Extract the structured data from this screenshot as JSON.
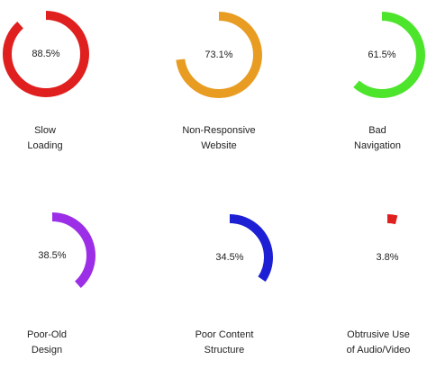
{
  "chart_data": {
    "type": "radial-progress",
    "categories": [
      "Slow\nLoading",
      "Non-Responsive\nWebsite",
      "Bad\nNavigation",
      "Poor-Old\nDesign",
      "Poor Content\nStructure",
      "Obtrusive Use\nof Audio/Video"
    ],
    "values": [
      88.5,
      73.1,
      61.5,
      38.5,
      34.5,
      3.8
    ],
    "value_labels": [
      "88.5%",
      "73.1%",
      "61.5%",
      "38.5%",
      "34.5%",
      "3.8%"
    ],
    "colors": [
      "#e01f1f",
      "#e89c22",
      "#4de42c",
      "#9b2ee6",
      "#1d1fd4",
      "#e01f1f"
    ]
  }
}
